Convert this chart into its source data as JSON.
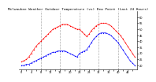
{
  "title": "Milwaukee Weather Outdoor Temperature (vs) Dew Point (Last 24 Hours)",
  "temp_color": "#ff0000",
  "dew_color": "#0000ff",
  "background_color": "#ffffff",
  "grid_color": "#999999",
  "title_fontsize": 3.2,
  "tick_fontsize": 2.5,
  "ylim": [
    17,
    65
  ],
  "yticks": [
    20,
    25,
    30,
    35,
    40,
    45,
    50,
    55,
    60
  ],
  "num_points": 48,
  "temp_data": [
    23,
    24,
    25,
    27,
    30,
    33,
    36,
    38,
    40,
    42,
    44,
    46,
    48,
    50,
    51,
    52,
    53,
    54,
    54,
    54,
    53,
    52,
    51,
    50,
    50,
    48,
    46,
    44,
    46,
    49,
    51,
    53,
    54,
    55,
    55,
    55,
    54,
    53,
    51,
    49,
    47,
    45,
    42,
    39,
    36,
    33,
    30,
    27
  ],
  "dew_data": [
    20,
    20,
    21,
    21,
    22,
    23,
    24,
    25,
    26,
    27,
    28,
    29,
    30,
    31,
    31,
    32,
    32,
    32,
    32,
    31,
    30,
    29,
    28,
    27,
    30,
    31,
    32,
    33,
    36,
    39,
    42,
    44,
    46,
    47,
    47,
    47,
    46,
    45,
    43,
    41,
    39,
    36,
    33,
    30,
    27,
    24,
    22,
    20
  ],
  "vgrid_positions": [
    8,
    16,
    24,
    32,
    40
  ],
  "xlim": [
    -1,
    48
  ]
}
